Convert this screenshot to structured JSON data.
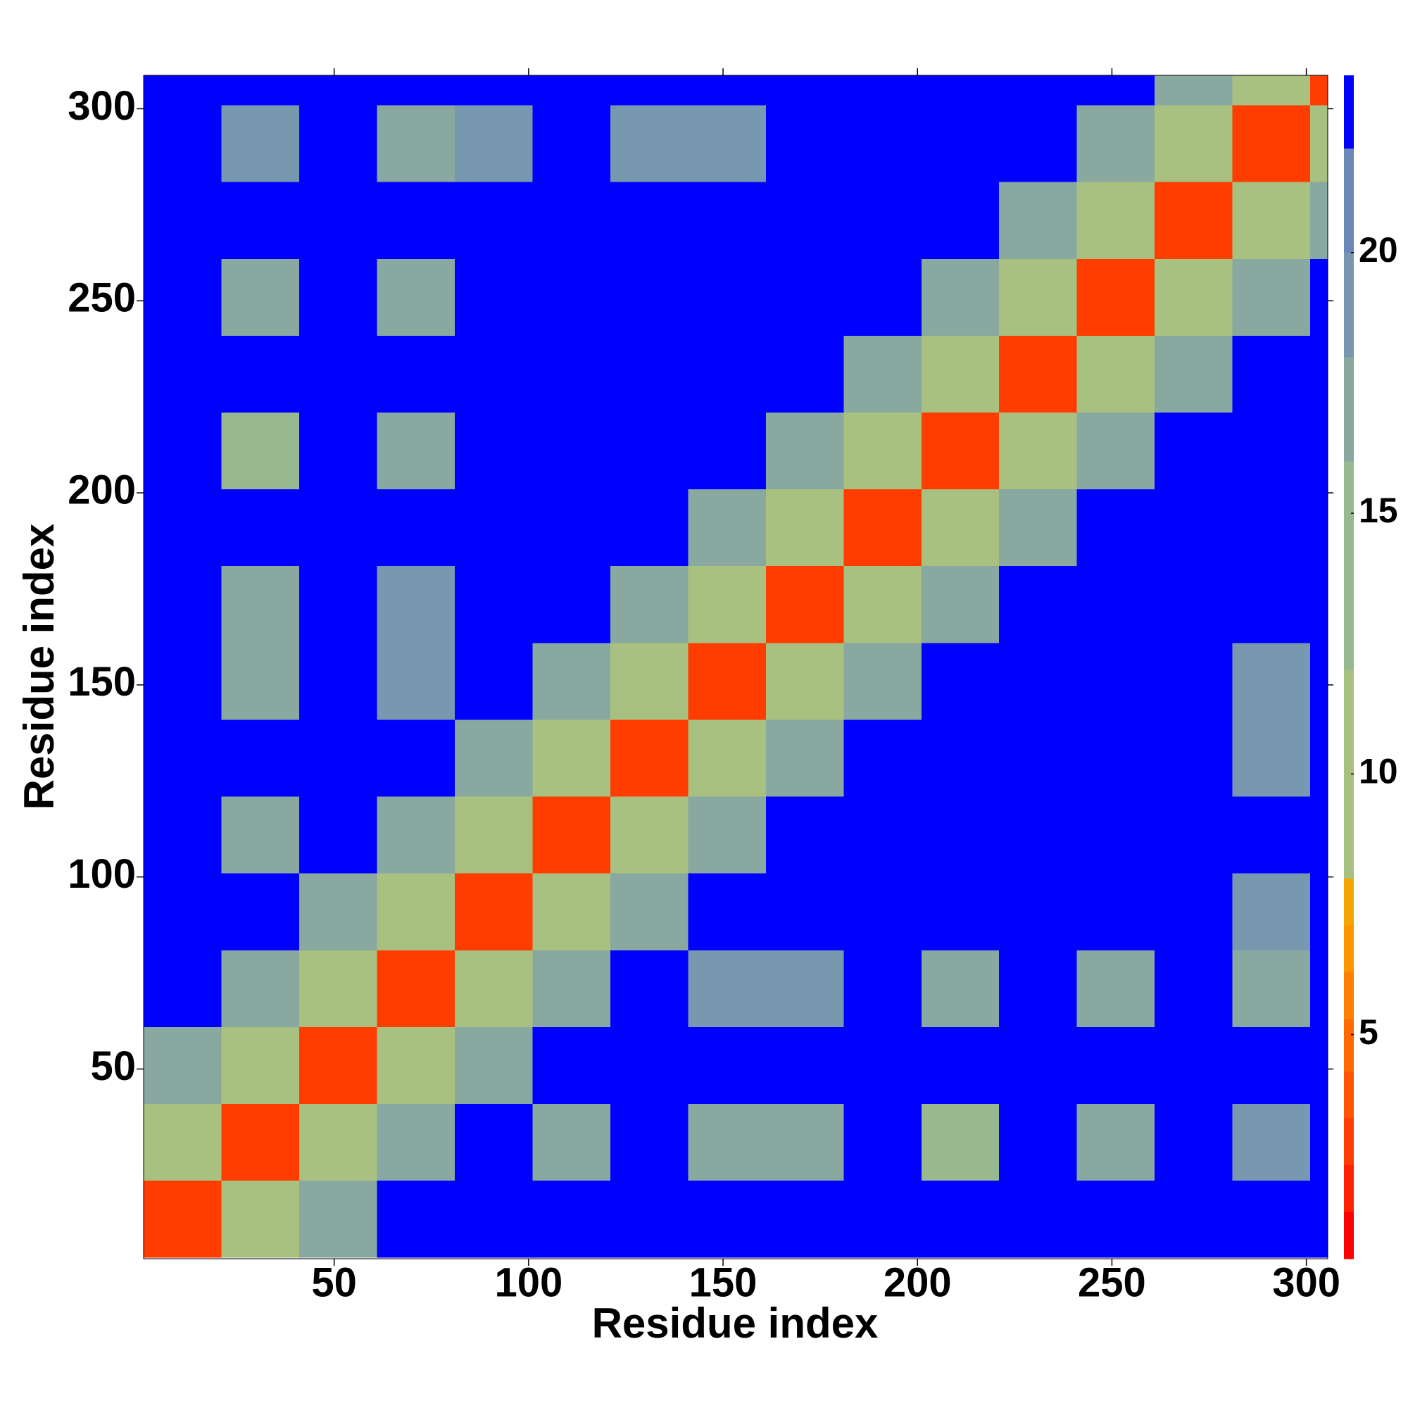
{
  "chart_data": {
    "type": "heatmap",
    "x_label": "Residue index",
    "y_label": "Residue index",
    "x_bins": [
      1,
      21,
      41,
      61,
      81,
      101,
      121,
      141,
      161,
      181,
      201,
      221,
      241,
      261,
      281,
      301,
      309
    ],
    "y_bins": [
      1,
      21,
      41,
      61,
      81,
      101,
      121,
      141,
      161,
      181,
      201,
      221,
      241,
      261,
      281,
      301,
      309
    ],
    "values": [
      [
        3,
        11,
        16,
        23,
        23,
        23,
        23,
        23,
        23,
        23,
        23,
        23,
        23,
        23,
        23,
        23
      ],
      [
        11,
        3,
        11,
        16,
        23,
        17,
        23,
        17,
        17,
        23,
        15,
        23,
        17,
        23,
        18,
        23
      ],
      [
        16,
        11,
        3,
        11,
        16,
        23,
        23,
        23,
        23,
        23,
        23,
        23,
        23,
        23,
        23,
        23
      ],
      [
        23,
        16,
        11,
        3,
        11,
        16,
        23,
        18,
        18,
        23,
        17,
        23,
        17,
        23,
        17,
        23
      ],
      [
        23,
        23,
        16,
        11,
        3,
        11,
        16,
        23,
        23,
        23,
        23,
        23,
        23,
        23,
        18,
        23
      ],
      [
        23,
        17,
        23,
        16,
        11,
        3,
        11,
        16,
        23,
        23,
        23,
        23,
        23,
        23,
        23,
        23
      ],
      [
        23,
        23,
        23,
        23,
        16,
        11,
        3,
        11,
        16,
        23,
        23,
        23,
        23,
        23,
        18,
        23
      ],
      [
        23,
        17,
        23,
        18,
        23,
        16,
        11,
        3,
        11,
        16,
        23,
        23,
        23,
        23,
        18,
        23
      ],
      [
        23,
        17,
        23,
        18,
        23,
        23,
        16,
        11,
        3,
        11,
        16,
        23,
        23,
        23,
        23,
        23
      ],
      [
        23,
        23,
        23,
        23,
        23,
        23,
        23,
        16,
        11,
        3,
        11,
        16,
        23,
        23,
        23,
        23
      ],
      [
        23,
        15,
        23,
        17,
        23,
        23,
        23,
        23,
        16,
        11,
        3,
        11,
        16,
        23,
        23,
        23
      ],
      [
        23,
        23,
        23,
        23,
        23,
        23,
        23,
        23,
        23,
        16,
        11,
        3,
        11,
        16,
        23,
        23
      ],
      [
        23,
        17,
        23,
        17,
        23,
        23,
        23,
        23,
        23,
        23,
        16,
        11,
        3,
        11,
        16,
        23
      ],
      [
        23,
        23,
        23,
        23,
        23,
        23,
        23,
        23,
        23,
        23,
        23,
        16,
        11,
        3,
        11,
        16
      ],
      [
        23,
        18,
        23,
        17,
        18,
        23,
        18,
        18,
        23,
        23,
        23,
        23,
        16,
        11,
        3,
        11
      ],
      [
        23,
        23,
        23,
        23,
        23,
        23,
        23,
        23,
        23,
        23,
        23,
        23,
        23,
        16,
        11,
        3
      ]
    ],
    "xlim": [
      1,
      305.5
    ],
    "ylim": [
      0.6,
      308.7
    ],
    "xticks": [
      50,
      100,
      150,
      200,
      250,
      300
    ],
    "yticks": [
      50,
      100,
      150,
      200,
      250,
      300
    ],
    "colorbar": {
      "levels": [
        0.7,
        1.6,
        2.5,
        3.4,
        4.3,
        5.3,
        6.2,
        7.1,
        8.0,
        12.0,
        16.0,
        18.0,
        20.0,
        22.0,
        23.4
      ],
      "colors": [
        "#ff0000",
        "#ff2200",
        "#ff3d00",
        "#ff5500",
        "#ff6a00",
        "#ff8000",
        "#ff9500",
        "#f5a500",
        "#a8c080",
        "#98b890",
        "#88a8a0",
        "#7898b0",
        "#6a88b8",
        "#0000ff"
      ],
      "ticks": [
        5,
        10,
        15,
        20
      ]
    }
  }
}
